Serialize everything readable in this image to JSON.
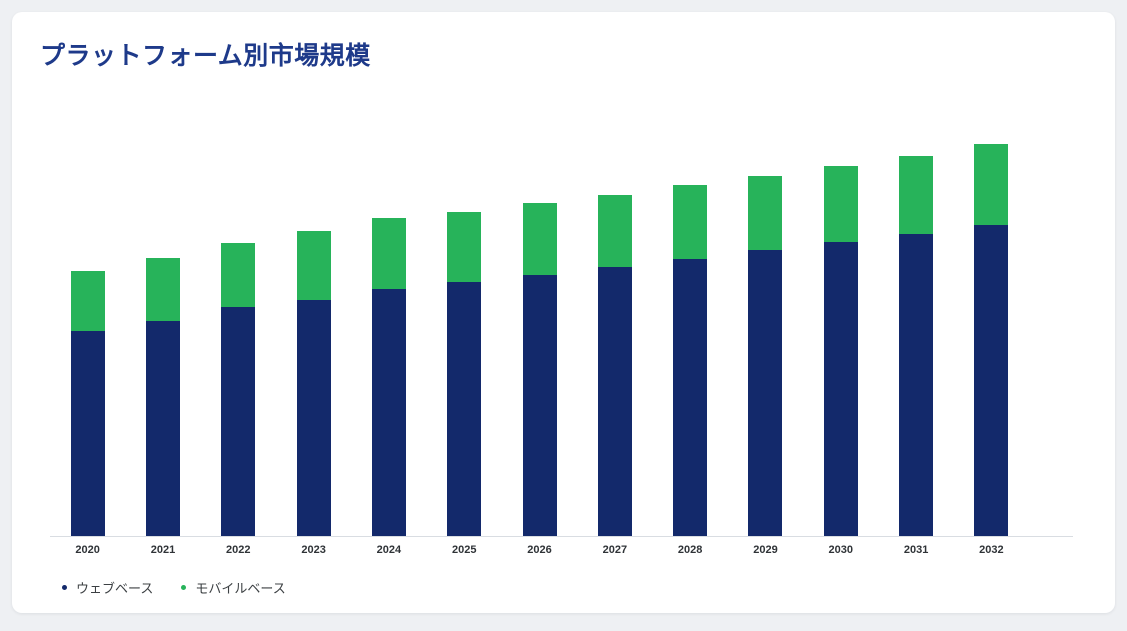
{
  "page": {
    "background": "#eef0f3",
    "card_background": "#ffffff"
  },
  "chart_data": {
    "type": "bar",
    "stacked": true,
    "title": "プラットフォーム別市場規模",
    "xlabel": "",
    "ylabel": "",
    "grid": false,
    "y_axis_labels_visible": false,
    "ylim": [
      0,
      40
    ],
    "legend_position": "bottom-left",
    "categories": [
      "2020",
      "2021",
      "2022",
      "2023",
      "2024",
      "2025",
      "2026",
      "2027",
      "2028",
      "2029",
      "2030",
      "2031",
      "2032"
    ],
    "series": [
      {
        "name": "ウェブベース",
        "color": "#13296b",
        "values": [
          19.5,
          20.5,
          21.8,
          22.5,
          23.5,
          24.2,
          24.9,
          25.6,
          26.4,
          27.2,
          28.0,
          28.8,
          29.6
        ]
      },
      {
        "name": "モバイルベース",
        "color": "#27b35a",
        "values": [
          5.7,
          6.0,
          6.1,
          6.5,
          6.8,
          6.7,
          6.8,
          6.9,
          7.0,
          7.1,
          7.2,
          7.4,
          7.7
        ]
      }
    ],
    "totals": [
      25.2,
      26.5,
      27.9,
      29.0,
      30.3,
      30.9,
      31.7,
      32.5,
      33.4,
      34.3,
      35.2,
      36.2,
      37.3
    ]
  },
  "colors": {
    "title": "#1e3a8a",
    "axis_line": "#d9dde2",
    "x_label": "#2f3337",
    "legend_text": "#3c4043",
    "next_section_strip": "#13296b"
  }
}
